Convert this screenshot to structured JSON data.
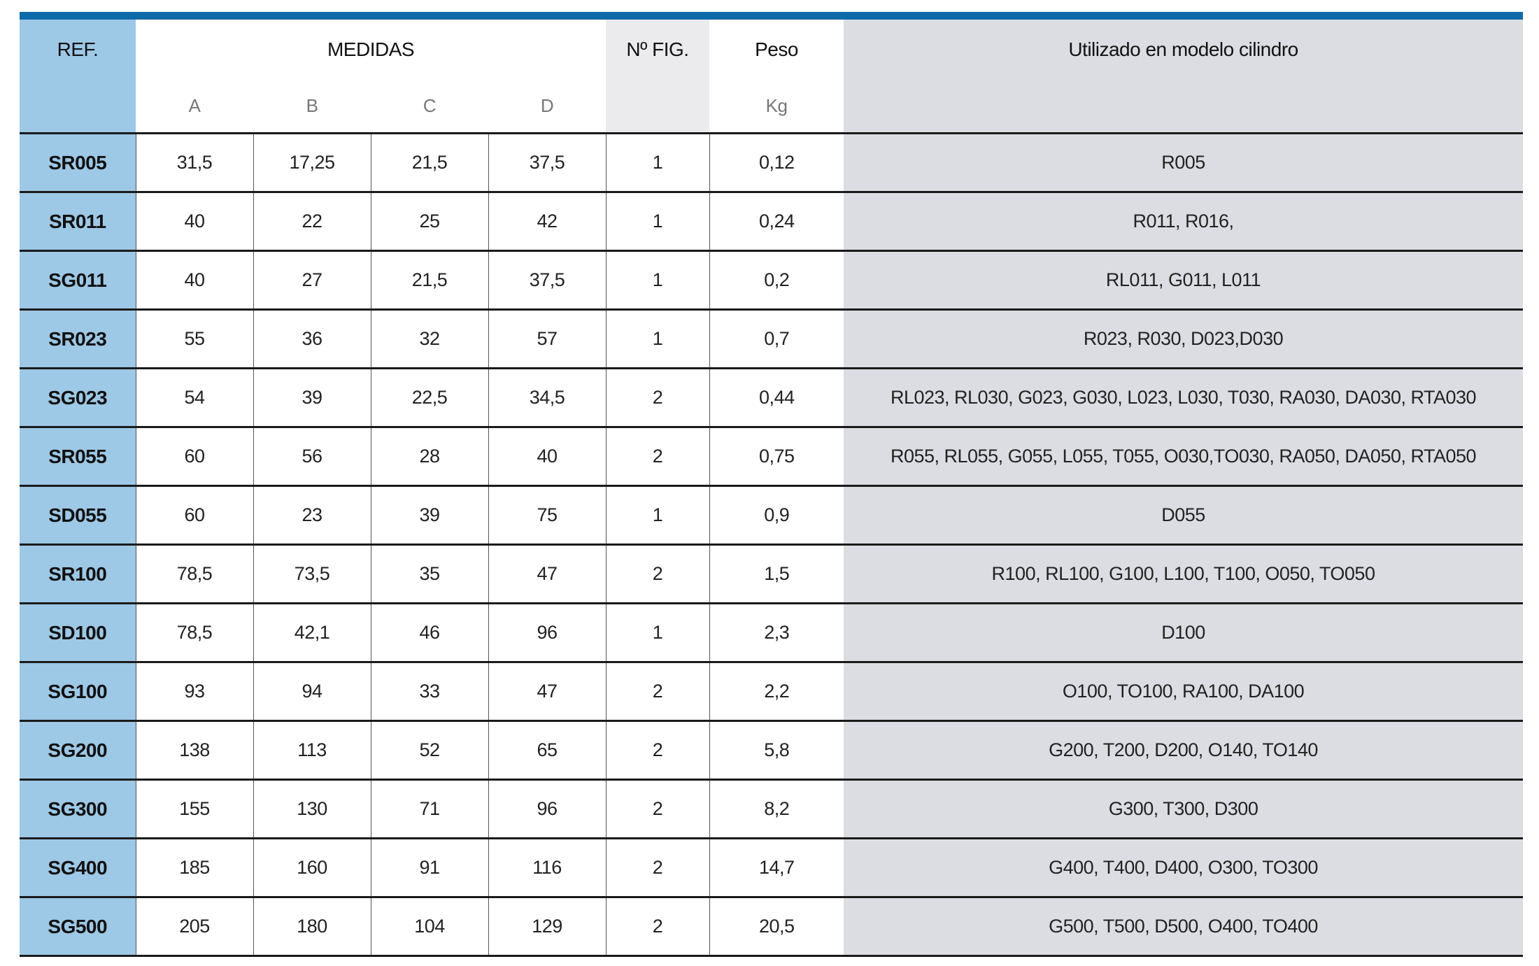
{
  "header": {
    "ref": "REF.",
    "medidas": "MEDIDAS",
    "fig": "Nº FIG.",
    "peso": "Peso",
    "utilizado": "Utilizado en modelo cilindro",
    "sub": [
      "A",
      "B",
      "C",
      "D",
      "Kg"
    ]
  },
  "table": {
    "rows": [
      [
        "SR005",
        "31,5",
        "17,25",
        "21,5",
        "37,5",
        "1",
        "0,12",
        "R005"
      ],
      [
        "SR011",
        "40",
        "22",
        "25",
        "42",
        "1",
        "0,24",
        "R011, R016,"
      ],
      [
        "SG011",
        "40",
        "27",
        "21,5",
        "37,5",
        "1",
        "0,2",
        "RL011, G011, L011"
      ],
      [
        "SR023",
        "55",
        "36",
        "32",
        "57",
        "1",
        "0,7",
        "R023, R030, D023,D030"
      ],
      [
        "SG023",
        "54",
        "39",
        "22,5",
        "34,5",
        "2",
        "0,44",
        "RL023, RL030, G023, G030, L023, L030, T030, RA030, DA030, RTA030"
      ],
      [
        "SR055",
        "60",
        "56",
        "28",
        "40",
        "2",
        "0,75",
        "R055, RL055, G055, L055, T055, O030,TO030, RA050, DA050, RTA050"
      ],
      [
        "SD055",
        "60",
        "23",
        "39",
        "75",
        "1",
        "0,9",
        "D055"
      ],
      [
        "SR100",
        "78,5",
        "73,5",
        "35",
        "47",
        "2",
        "1,5",
        "R100, RL100, G100, L100, T100, O050, TO050"
      ],
      [
        "SD100",
        "78,5",
        "42,1",
        "46",
        "96",
        "1",
        "2,3",
        "D100"
      ],
      [
        "SG100",
        "93",
        "94",
        "33",
        "47",
        "2",
        "2,2",
        "O100, TO100, RA100, DA100"
      ],
      [
        "SG200",
        "138",
        "113",
        "52",
        "65",
        "2",
        "5,8",
        "G200, T200, D200, O140, TO140"
      ],
      [
        "SG300",
        "155",
        "130",
        "71",
        "96",
        "2",
        "8,2",
        "G300, T300, D300"
      ],
      [
        "SG400",
        "185",
        "160",
        "91",
        "116",
        "2",
        "14,7",
        "G400, T400, D400, O300, TO300"
      ],
      [
        "SG500",
        "205",
        "180",
        "104",
        "129",
        "2",
        "20,5",
        "G500, T500, D500, O400, TO400"
      ]
    ]
  }
}
